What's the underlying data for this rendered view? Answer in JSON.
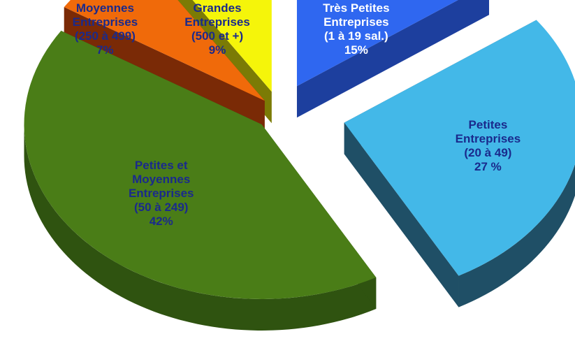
{
  "chart_data": {
    "type": "pie",
    "style": "3d-exploded",
    "slices": [
      {
        "lines": [
          "Très Petites",
          "Entreprises",
          "(1 à 19 sal.)",
          "15%"
        ],
        "value": 15,
        "color": "#2f67f0",
        "side_color": "#1d3f9e",
        "label_color": "#ffffff"
      },
      {
        "lines": [
          "Petites",
          "Entreprises",
          "(20 à 49)",
          "27 %"
        ],
        "value": 27,
        "color": "#43b8e8",
        "side_color": "#1f4f66",
        "label_color": "#1a2a8c"
      },
      {
        "lines": [
          "Petites et",
          "Moyennes",
          "Entreprises",
          "(50 à 249)",
          "42%"
        ],
        "value": 42,
        "color": "#4a7d17",
        "side_color": "#2f5310",
        "label_color": "#1a2a8c"
      },
      {
        "lines": [
          "Moyennes",
          "Entreprises",
          "(250 à 499)",
          "7%"
        ],
        "value": 7,
        "color": "#f06a0a",
        "side_color": "#7a2a06",
        "label_color": "#1a2a8c"
      },
      {
        "lines": [
          "Grandes",
          "Entreprises",
          "(500 et +)",
          "9%"
        ],
        "value": 9,
        "color": "#f5f50a",
        "side_color": "#7b7b05",
        "label_color": "#1a2a8c"
      }
    ]
  }
}
